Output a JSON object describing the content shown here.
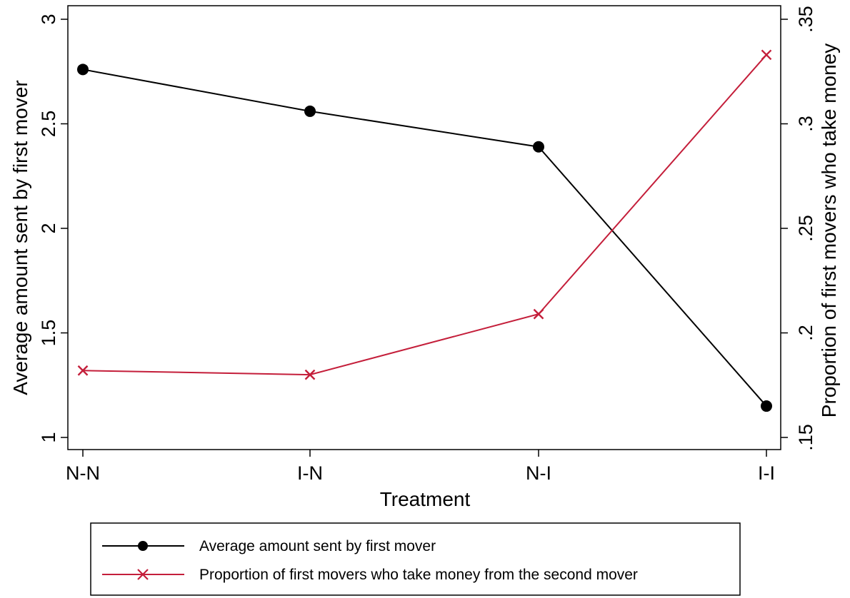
{
  "chart_data": {
    "type": "line",
    "title": "",
    "xlabel": "Treatment",
    "ylabel": "Average amount sent by first mover",
    "y2label": "Proportion of first movers who take money",
    "categories": [
      "N-N",
      "I-N",
      "N-I",
      "I-I"
    ],
    "ylim": [
      1,
      3
    ],
    "y_ticks": [
      "1",
      "1.5",
      "2",
      "2.5",
      "3"
    ],
    "y2lim": [
      0.15,
      0.35
    ],
    "y2_ticks": [
      ".15",
      ".2",
      ".25",
      ".3",
      ".35"
    ],
    "grid": false,
    "legend_position": "bottom",
    "series": [
      {
        "name": "Average amount sent by first mover",
        "axis": "left",
        "marker": "circle",
        "color": "#000000",
        "values": [
          2.76,
          2.56,
          2.39,
          1.15
        ]
      },
      {
        "name": "Proportion of first movers who take money from the second mover",
        "axis": "right",
        "marker": "x",
        "color": "#c41e3a",
        "values": [
          0.182,
          0.18,
          0.209,
          0.333
        ]
      }
    ]
  }
}
